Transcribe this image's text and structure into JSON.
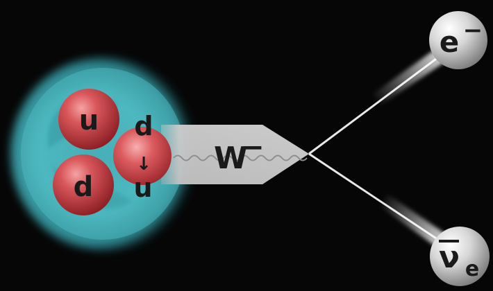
{
  "diagram": {
    "nucleon": {
      "quarks": [
        {
          "label": "u",
          "color": "#c93a40"
        },
        {
          "label": "d",
          "color": "#c93a40"
        }
      ],
      "transforming_quark": {
        "from_label": "d",
        "to_label": "u",
        "arrow": "↓",
        "color": "#cd3d43"
      },
      "cloud_color": "#4fbcc4"
    },
    "boson": {
      "label": "W",
      "charge": "−",
      "color": "#c8c8c8"
    },
    "electron": {
      "label": "e",
      "charge": "−",
      "color": "#d6d6d6"
    },
    "antineutrino": {
      "label": "ν",
      "subscript": "e",
      "bar": "¯",
      "color": "#d6d6d6"
    },
    "track_color": "#e8e8e8",
    "wave_color": "#8e8e8e"
  }
}
